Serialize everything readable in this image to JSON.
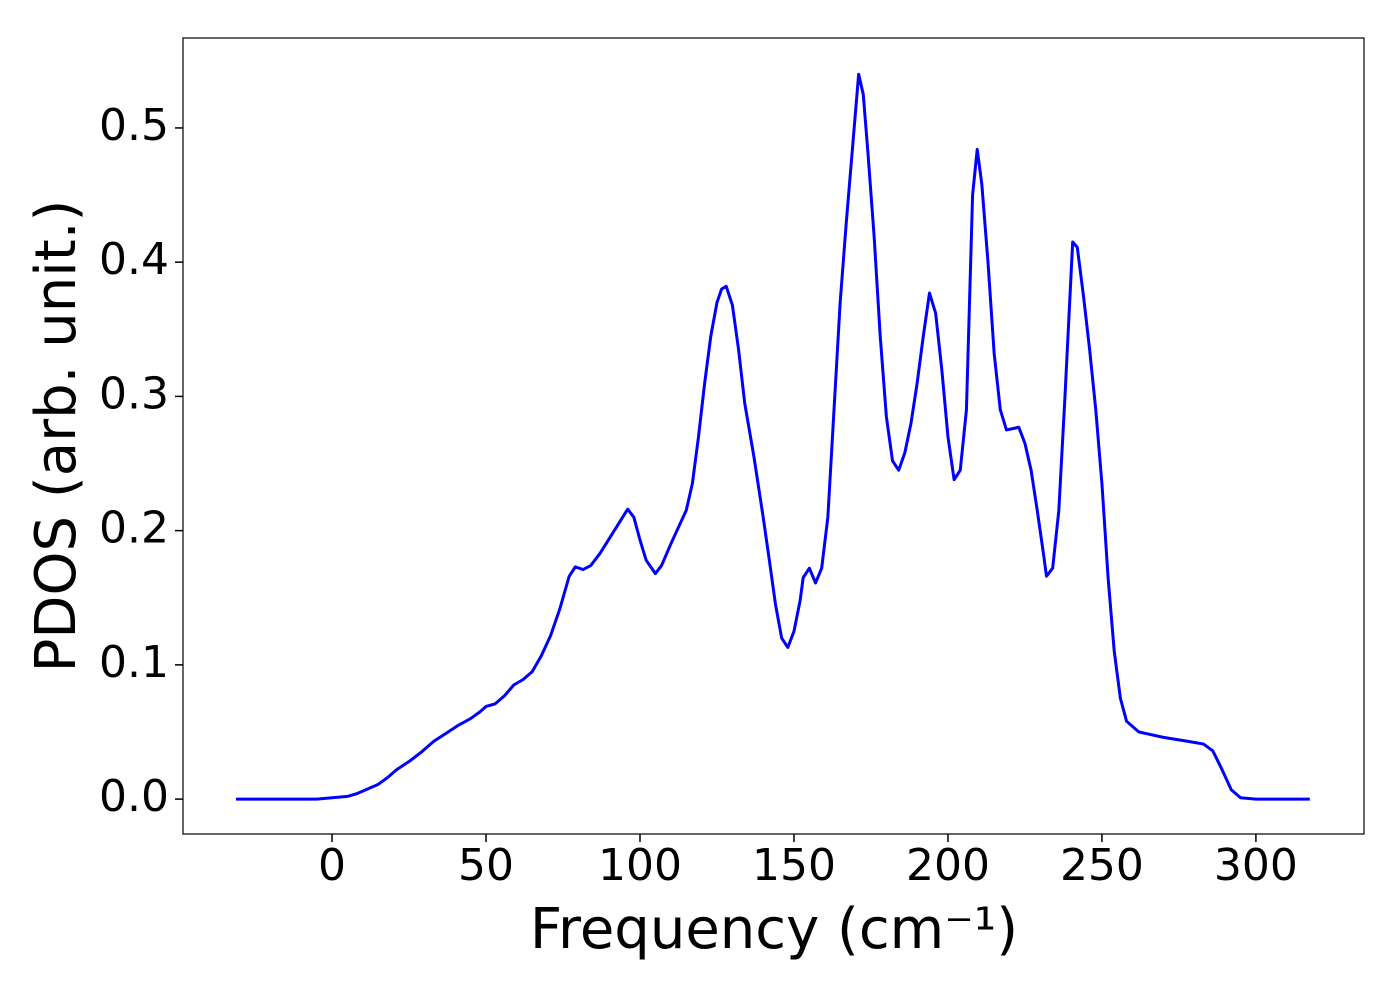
{
  "chart_data": {
    "type": "line",
    "x_label": "Frequency (cm⁻¹)",
    "y_label": "PDOS (arb. unit.)",
    "color": "#0000ff",
    "x": [
      -31.2,
      -15,
      -5,
      0,
      5,
      8,
      12,
      15,
      18,
      21,
      25,
      29,
      33,
      37,
      41,
      45,
      48,
      50,
      53,
      56,
      59,
      62,
      65,
      68,
      71,
      74,
      77,
      79,
      81.5,
      84,
      87,
      90,
      93,
      96,
      98,
      100,
      102,
      105,
      107,
      110,
      113,
      115,
      117,
      119,
      121,
      123,
      125,
      126.5,
      128,
      130,
      132,
      134,
      137,
      140,
      142,
      144,
      146,
      148,
      150,
      152,
      153,
      155,
      157,
      159,
      161,
      163,
      165,
      167,
      169,
      171,
      172.5,
      174,
      176,
      178,
      180,
      182,
      184,
      186,
      188,
      190,
      192,
      194,
      196,
      198,
      200,
      202,
      204,
      206,
      208,
      209.5,
      211,
      213,
      215,
      217,
      219,
      221,
      223,
      225,
      227,
      229,
      231,
      232,
      234,
      236,
      238,
      240.5,
      242,
      244,
      246,
      248,
      250,
      252,
      254,
      256,
      258,
      262,
      270,
      278,
      283,
      286,
      289,
      292,
      295,
      300,
      317.5
    ],
    "values": [
      0,
      0,
      0,
      0.001,
      0.002,
      0.004,
      0.008,
      0.011,
      0.016,
      0.022,
      0.028,
      0.035,
      0.043,
      0.049,
      0.055,
      0.06,
      0.065,
      0.069,
      0.071,
      0.077,
      0.085,
      0.089,
      0.095,
      0.107,
      0.122,
      0.142,
      0.166,
      0.173,
      0.171,
      0.174,
      0.183,
      0.194,
      0.205,
      0.216,
      0.21,
      0.193,
      0.178,
      0.168,
      0.174,
      0.19,
      0.205,
      0.215,
      0.235,
      0.27,
      0.31,
      0.345,
      0.37,
      0.38,
      0.382,
      0.368,
      0.335,
      0.295,
      0.255,
      0.21,
      0.178,
      0.145,
      0.12,
      0.113,
      0.125,
      0.148,
      0.165,
      0.172,
      0.161,
      0.172,
      0.21,
      0.29,
      0.37,
      0.43,
      0.485,
      0.54,
      0.525,
      0.482,
      0.42,
      0.345,
      0.285,
      0.252,
      0.245,
      0.258,
      0.28,
      0.31,
      0.345,
      0.377,
      0.362,
      0.32,
      0.27,
      0.238,
      0.245,
      0.29,
      0.45,
      0.484,
      0.458,
      0.4,
      0.332,
      0.29,
      0.275,
      0.276,
      0.277,
      0.265,
      0.245,
      0.215,
      0.183,
      0.166,
      0.172,
      0.215,
      0.3,
      0.415,
      0.411,
      0.375,
      0.335,
      0.29,
      0.235,
      0.165,
      0.11,
      0.075,
      0.058,
      0.05,
      0.046,
      0.043,
      0.041,
      0.036,
      0.022,
      0.007,
      0.001,
      0,
      0
    ],
    "xlim": [
      -48.4,
      335.1
    ],
    "ylim": [
      -0.026,
      0.567
    ],
    "xticks": [
      0,
      50,
      100,
      150,
      200,
      250,
      300
    ],
    "yticks": [
      {
        "value": 0,
        "label": "0.0"
      },
      0.1,
      0.2,
      0.3,
      0.4,
      0.5
    ],
    "grid": false
  }
}
